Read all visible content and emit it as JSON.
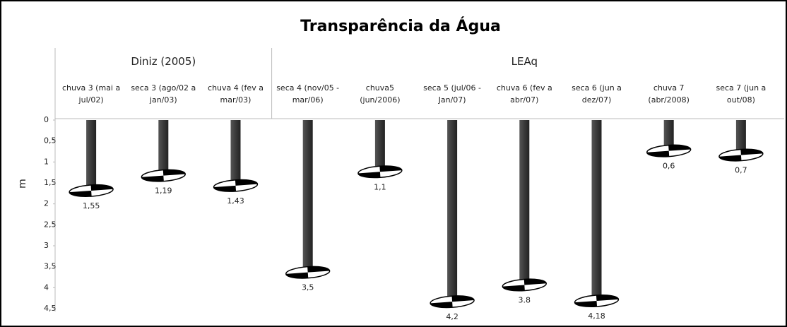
{
  "chart_data": {
    "type": "bar",
    "title": "Transparência da Água",
    "ylabel": "m",
    "yaxis_inverted": true,
    "color": "#404040",
    "ylim": [
      0,
      4.5
    ],
    "yticks": [
      0,
      {
        "value": 0.5,
        "label": "0,5"
      },
      1,
      {
        "value": 1.5,
        "label": "1,5"
      },
      2,
      {
        "value": 2.5,
        "label": "2,5"
      },
      3,
      {
        "value": 3.5,
        "label": "3,5"
      },
      4,
      {
        "value": 4.5,
        "label": "4,5"
      }
    ],
    "groups": [
      {
        "name": "Diniz (2005)",
        "categories": [
          "chuva 3 (mai a jul/02)",
          "seca 3 (ago/02 a jan/03)",
          "chuva 4 (fev a mar/03)"
        ],
        "values": [
          1.55,
          1.19,
          1.43
        ],
        "value_labels": [
          "1,55",
          "1,19",
          "1,43"
        ]
      },
      {
        "name": "LEAq",
        "categories": [
          "seca 4 (nov/05 - mar/06)",
          "chuva5 (jun/2006)",
          "seca 5 (jul/06 - Jan/07)",
          "chuva 6 (fev a abr/07)",
          "seca 6 (jun a dez/07)",
          "chuva 7 (abr/2008)",
          "seca 7 (jun a out/08)"
        ],
        "values": [
          3.5,
          1.1,
          4.2,
          3.8,
          4.18,
          0.6,
          0.7
        ],
        "value_labels": [
          "3,5",
          "1,1",
          "4,2",
          "3.8",
          "4,18",
          "0,6",
          "0,7"
        ]
      }
    ]
  }
}
